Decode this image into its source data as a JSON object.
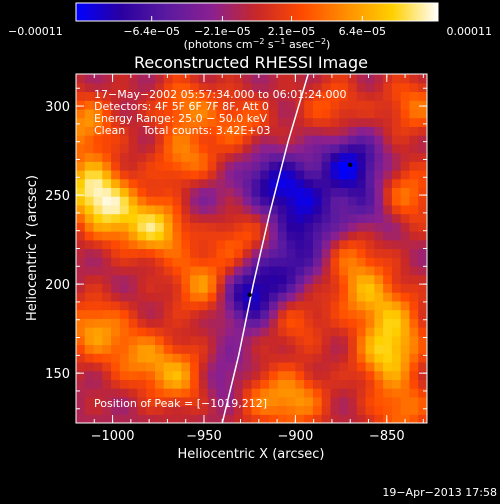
{
  "chart_data": {
    "type": "heatmap",
    "title": "Reconstructed RHESSI Image",
    "xlabel": "Heliocentric X (arcsec)",
    "ylabel": "Heliocentric Y (arcsec)",
    "xlim": [
      -1020,
      -828
    ],
    "ylim": [
      122,
      318
    ],
    "x_ticks": [
      -1000,
      -950,
      -900,
      -850
    ],
    "x_tick_labels": [
      "−1000",
      "−950",
      "−900",
      "−850"
    ],
    "y_ticks": [
      150,
      200,
      250,
      300
    ],
    "y_tick_labels": [
      "150",
      "200",
      "250",
      "300"
    ],
    "colorbar": {
      "range": [
        -0.00011,
        0.00011
      ],
      "ticks": [
        -0.00011,
        -6.4e-05,
        -2.1e-05,
        2.1e-05,
        6.4e-05,
        0.00011
      ],
      "tick_labels": [
        "−0.00011",
        "−6.4e−05",
        "−2.1e−05",
        "2.1e−05",
        "6.4e−05",
        "0.00011"
      ],
      "label_parts": [
        "(photons cm",
        "−2",
        " s",
        "−1",
        " asec",
        "−2",
        ")"
      ],
      "colors": [
        "#0000ff",
        "#2a00a0",
        "#5a1aa0",
        "#8a2090",
        "#c82828",
        "#ff4a00",
        "#ff9000",
        "#ffd000",
        "#ffffff"
      ]
    },
    "annotations": [
      "17−May−2002 05:57:34.000 to 06:01:24.000",
      "Detectors: 4F 5F 6F 7F 8F, Att 0",
      "Energy Range: 25.0 − 50.0 keV",
      "Clean     Total counts: 3.42E+03"
    ],
    "peak_label": "Position of Peak = [−1019,212]",
    "limb_curve": [
      [
        -940,
        122
      ],
      [
        -931,
        160
      ],
      [
        -923,
        200
      ],
      [
        -914,
        240
      ],
      [
        -904,
        280
      ],
      [
        -893,
        318
      ]
    ],
    "markers": [
      [
        -925,
        194
      ],
      [
        -870,
        267
      ]
    ],
    "blobs": [
      {
        "x": -1012,
        "y": 255,
        "v": 1.0
      },
      {
        "x": -1015,
        "y": 290,
        "v": 0.7
      },
      {
        "x": -1000,
        "y": 240,
        "v": 0.8
      },
      {
        "x": -975,
        "y": 232,
        "v": 1.0
      },
      {
        "x": -960,
        "y": 268,
        "v": 0.7
      },
      {
        "x": -960,
        "y": 300,
        "v": 0.6
      },
      {
        "x": -1010,
        "y": 175,
        "v": 0.75
      },
      {
        "x": -985,
        "y": 160,
        "v": 0.6
      },
      {
        "x": -950,
        "y": 200,
        "v": 0.75
      },
      {
        "x": -963,
        "y": 148,
        "v": 0.75
      },
      {
        "x": -925,
        "y": 140,
        "v": 0.7
      },
      {
        "x": -900,
        "y": 135,
        "v": 0.7
      },
      {
        "x": -930,
        "y": 225,
        "v": 0.5
      },
      {
        "x": -900,
        "y": 180,
        "v": 0.45
      },
      {
        "x": -870,
        "y": 220,
        "v": 0.55
      },
      {
        "x": -862,
        "y": 196,
        "v": 0.7
      },
      {
        "x": -840,
        "y": 250,
        "v": 0.65
      },
      {
        "x": -835,
        "y": 300,
        "v": 0.55
      },
      {
        "x": -845,
        "y": 180,
        "v": 0.6
      },
      {
        "x": -850,
        "y": 160,
        "v": 0.9
      },
      {
        "x": -842,
        "y": 130,
        "v": 0.6
      },
      {
        "x": -930,
        "y": 290,
        "v": 0.5
      },
      {
        "x": -880,
        "y": 300,
        "v": 0.45
      },
      {
        "x": -925,
        "y": 194,
        "v": -1.0
      },
      {
        "x": -870,
        "y": 267,
        "v": -1.0
      },
      {
        "x": -900,
        "y": 250,
        "v": -0.7
      },
      {
        "x": -890,
        "y": 230,
        "v": -0.6
      },
      {
        "x": -915,
        "y": 260,
        "v": -0.6
      },
      {
        "x": -935,
        "y": 145,
        "v": -0.7
      },
      {
        "x": -860,
        "y": 240,
        "v": -0.5
      },
      {
        "x": -955,
        "y": 250,
        "v": -0.35
      },
      {
        "x": -905,
        "y": 210,
        "v": -0.6
      }
    ]
  },
  "footer": {
    "timestamp": "19−Apr−2013 17:58"
  }
}
